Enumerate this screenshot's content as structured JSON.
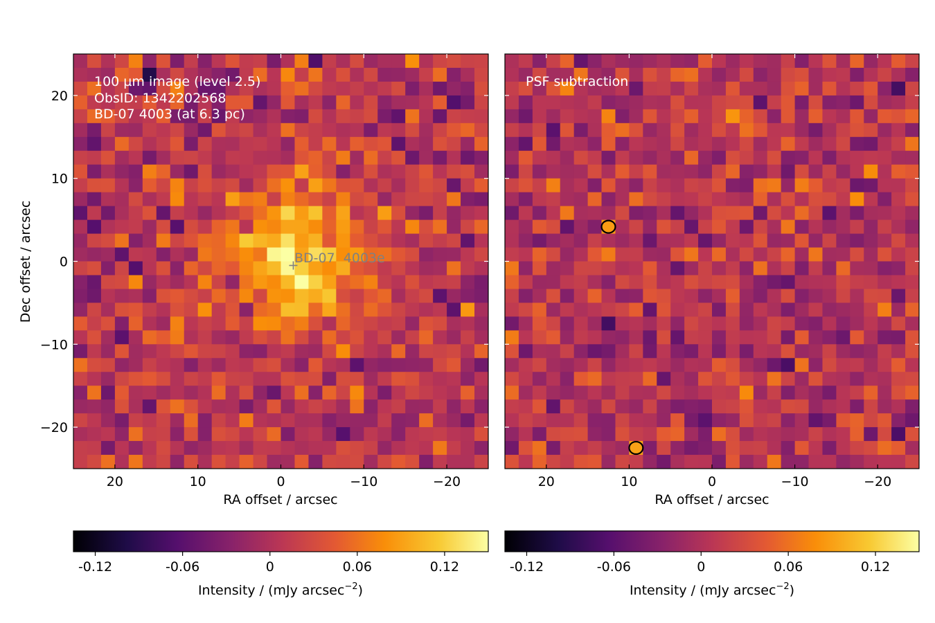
{
  "chart_data": [
    {
      "type": "heatmap",
      "panel": "left",
      "annotations": [
        "100 µm image (level 2.5)",
        "ObsID: 1342202568",
        "BD-07 4003 (at 6.3 pc)"
      ],
      "marker_label": "BD-07  4003e",
      "marker_position": [
        -1.5,
        -0.5
      ],
      "xlabel": "RA offset / arcsec",
      "ylabel": "Dec offset / arcsec",
      "xlim": [
        25,
        -25
      ],
      "ylim": [
        -25,
        25
      ],
      "xticks": [
        20,
        10,
        0,
        -10,
        -20
      ],
      "yticks": [
        20,
        10,
        0,
        -10,
        -20
      ],
      "grid": false,
      "colormap": "inferno",
      "bright_region": {
        "center": [
          -2,
          0
        ],
        "radius": 6,
        "peak": 0.12
      },
      "colorbar": {
        "label": "Intensity / (mJy arcsec",
        "label_sup": "−2",
        "label_tail": ")",
        "ticks": [
          -0.12,
          -0.06,
          0,
          0.06,
          0.12
        ],
        "tick_labels": [
          "-0.12",
          "-0.06",
          "0",
          "0.06",
          "0.12"
        ],
        "range": [
          -0.135,
          0.15
        ]
      }
    },
    {
      "type": "heatmap",
      "panel": "right",
      "annotations": [
        "PSF subtraction"
      ],
      "xlabel": "RA offset / arcsec",
      "ylabel": "",
      "xlim": [
        25,
        -25
      ],
      "ylim": [
        -25,
        25
      ],
      "xticks": [
        20,
        10,
        0,
        -10,
        -20
      ],
      "yticks": [
        20,
        10,
        0,
        -10,
        -20
      ],
      "grid": false,
      "colormap": "inferno",
      "contours": [
        {
          "color": "#000000",
          "level": "positive"
        },
        {
          "color": "#dcdcdc",
          "level": "negative"
        }
      ],
      "colorbar": {
        "label": "Intensity / (mJy arcsec",
        "label_sup": "−2",
        "label_tail": ")",
        "ticks": [
          -0.12,
          -0.06,
          0,
          0.06,
          0.12
        ],
        "tick_labels": [
          "-0.12",
          "-0.06",
          "0",
          "0.06",
          "0.12"
        ],
        "range": [
          -0.135,
          0.15
        ]
      }
    }
  ]
}
